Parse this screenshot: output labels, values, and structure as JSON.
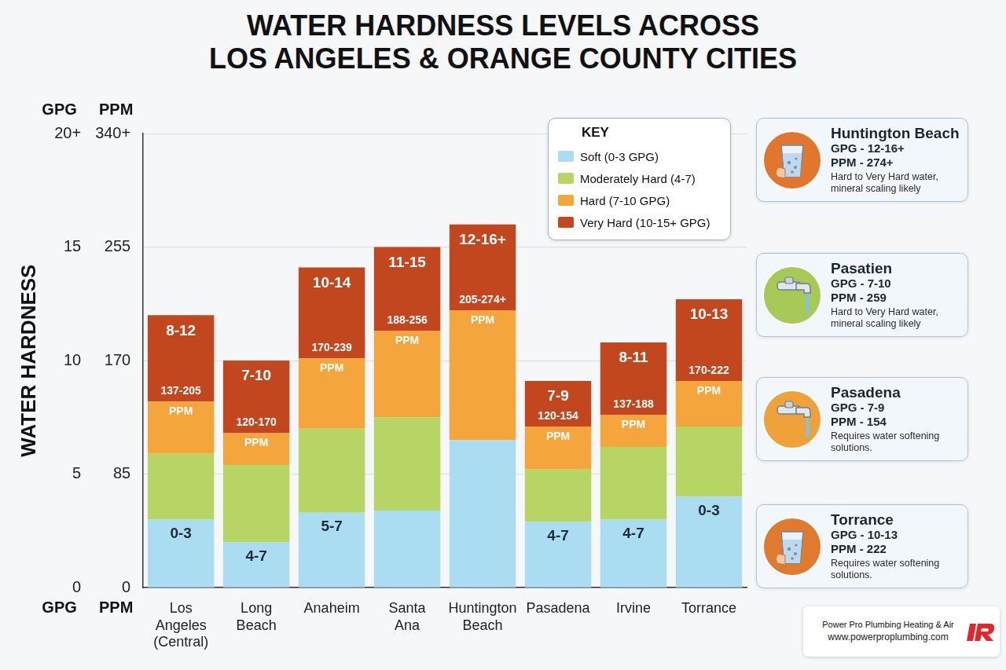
{
  "chart_data": {
    "type": "bar",
    "stacked": true,
    "title": [
      "WATER HARDNESS LEVELS ACROSS",
      "LOS ANGELES & ORANGE COUNTY CITIES"
    ],
    "ylabel": "WATER HARDNESS",
    "y_title": "GPG",
    "y2_title": "PPM",
    "categories": [
      "Los Angeles (Central)",
      "Long Beach",
      "Anaheim",
      "Santa Ana",
      "Huntington Beach",
      "Pasadena",
      "Irvine",
      "Torrance"
    ],
    "series": [
      {
        "name": "Soft (0-3 GPG)",
        "color": "#aadcf2",
        "values": [
          3.0,
          2.0,
          3.3,
          3.4,
          6.5,
          2.9,
          3.0,
          4.0
        ]
      },
      {
        "name": "Moderately Hard (4-7)",
        "color": "#b6d565",
        "values": [
          2.9,
          3.4,
          3.7,
          4.1,
          0,
          2.3,
          3.2,
          3.1
        ]
      },
      {
        "name": "Hard (7-10 GPG)",
        "color": "#f4a63c",
        "values": [
          2.3,
          1.4,
          3.1,
          3.8,
          5.7,
          1.9,
          1.4,
          2.0
        ]
      },
      {
        "name": "Very Hard (10-15+ GPG)",
        "color": "#c2461e",
        "values": [
          3.8,
          3.2,
          4.0,
          3.7,
          3.8,
          2.0,
          3.2,
          3.6
        ]
      }
    ],
    "gpg_labels": [
      "8-12",
      "7-10",
      "10-14",
      "11-15",
      "12-16+",
      "7-9",
      "8-11",
      "10-13"
    ],
    "ppm_labels": [
      "137-205 PPM",
      "120-170 PPM",
      "170-239 PPM",
      "188-256 PPM",
      "205-274+ PPM",
      "120-154 PPM",
      "137-188 PPM",
      "170-222 PPM"
    ],
    "base_labels": [
      "0-3",
      "4-7",
      "5-7",
      null,
      null,
      "4-7",
      "4-7",
      "0-3"
    ],
    "ylim": [
      0,
      20
    ],
    "yticks": [
      0,
      5,
      10,
      15,
      {
        "value": 20,
        "label": "20+"
      }
    ],
    "y2lim": [
      0,
      340
    ],
    "y2ticks": [
      0,
      85,
      170,
      255,
      {
        "value": 340,
        "label": "340+"
      }
    ],
    "grid": true,
    "legend": "top right",
    "legend_title": "KEY"
  },
  "panels": [
    {
      "title": "Huntington Beach",
      "gpg": "GPG - 12-16+",
      "ppm": "PPM - 274+",
      "note": "Hard to Very Hard water, mineral scaling likely"
    },
    {
      "title": "Pasatien",
      "gpg": "GPG - 7-10",
      "ppm": "PPM - 259",
      "note": "Hard to Very Hard water, mineral scaling likely"
    },
    {
      "title": "Pasadena",
      "gpg": "GPG - 7-9",
      "ppm": "PPM - 154",
      "note": "Requires water softening solutions."
    },
    {
      "title": "Torrance",
      "gpg": "GPG - 10-13",
      "ppm": "PPM - 222",
      "note": "Requires water softening solutions."
    }
  ],
  "footer": {
    "company": "Power Pro Plumbing Heating & Air",
    "url": "www.powerproplumbing.com"
  }
}
